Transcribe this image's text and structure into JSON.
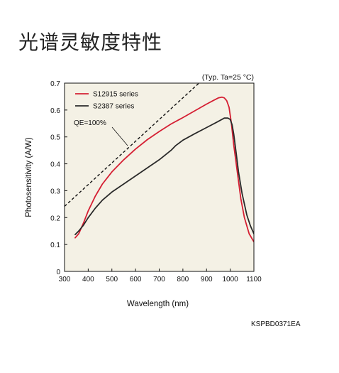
{
  "title": "光谱灵敏度特性",
  "doc_code": "KSPBD0371EA",
  "chart_data": {
    "type": "line",
    "condition_note": "(Typ. Ta=25 °C)",
    "xlabel": "Wavelength (nm)",
    "ylabel": "Photosensitivity (A/W)",
    "xlim": [
      300,
      1100
    ],
    "ylim": [
      0,
      0.7
    ],
    "x_ticks": [
      "300",
      "400",
      "500",
      "600",
      "700",
      "800",
      "900",
      "1000",
      "1100"
    ],
    "y_ticks": [
      "0",
      "0.1",
      "0.2",
      "0.3",
      "0.4",
      "0.5",
      "0.6",
      "0.7"
    ],
    "grid": false,
    "legend_position": "top-left",
    "colors": {
      "plot_bg": "#f4f1e5",
      "s12915": "#d51f33",
      "s2387": "#2a2a2a",
      "qe": "#111111"
    },
    "series": [
      {
        "name": "S12915 series",
        "color": "#d51f33",
        "points": [
          [
            345,
            0.125
          ],
          [
            360,
            0.14
          ],
          [
            380,
            0.18
          ],
          [
            400,
            0.225
          ],
          [
            430,
            0.28
          ],
          [
            460,
            0.325
          ],
          [
            500,
            0.37
          ],
          [
            550,
            0.415
          ],
          [
            600,
            0.455
          ],
          [
            650,
            0.49
          ],
          [
            700,
            0.52
          ],
          [
            750,
            0.548
          ],
          [
            800,
            0.572
          ],
          [
            850,
            0.597
          ],
          [
            900,
            0.622
          ],
          [
            930,
            0.636
          ],
          [
            950,
            0.645
          ],
          [
            965,
            0.648
          ],
          [
            975,
            0.645
          ],
          [
            985,
            0.635
          ],
          [
            995,
            0.61
          ],
          [
            1005,
            0.55
          ],
          [
            1015,
            0.47
          ],
          [
            1030,
            0.37
          ],
          [
            1045,
            0.27
          ],
          [
            1060,
            0.2
          ],
          [
            1080,
            0.14
          ],
          [
            1100,
            0.11
          ]
        ]
      },
      {
        "name": "S2387 series",
        "color": "#2a2a2a",
        "points": [
          [
            345,
            0.137
          ],
          [
            360,
            0.15
          ],
          [
            380,
            0.172
          ],
          [
            400,
            0.2
          ],
          [
            430,
            0.235
          ],
          [
            460,
            0.265
          ],
          [
            500,
            0.295
          ],
          [
            550,
            0.325
          ],
          [
            600,
            0.355
          ],
          [
            650,
            0.385
          ],
          [
            700,
            0.415
          ],
          [
            750,
            0.45
          ],
          [
            770,
            0.468
          ],
          [
            800,
            0.488
          ],
          [
            850,
            0.512
          ],
          [
            900,
            0.535
          ],
          [
            940,
            0.553
          ],
          [
            960,
            0.563
          ],
          [
            975,
            0.57
          ],
          [
            990,
            0.57
          ],
          [
            1000,
            0.565
          ],
          [
            1008,
            0.545
          ],
          [
            1015,
            0.51
          ],
          [
            1025,
            0.44
          ],
          [
            1035,
            0.37
          ],
          [
            1050,
            0.29
          ],
          [
            1070,
            0.21
          ],
          [
            1085,
            0.17
          ],
          [
            1100,
            0.14
          ]
        ]
      }
    ],
    "reference_line": {
      "label": "QE=100%",
      "style": "dashed",
      "points": [
        [
          300,
          0.242
        ],
        [
          920,
          0.742
        ]
      ]
    }
  }
}
